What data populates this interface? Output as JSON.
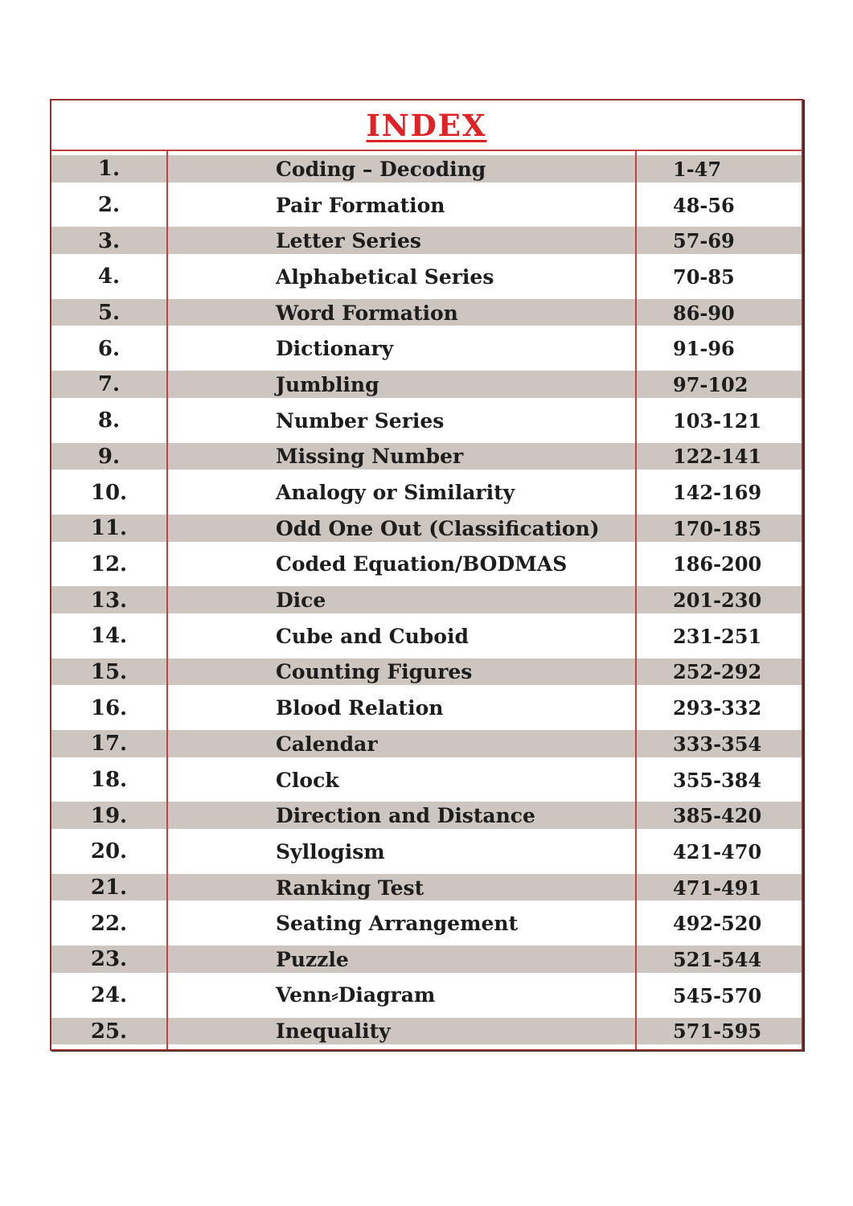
{
  "document": {
    "title": "INDEX",
    "colors": {
      "title_red": "#e02125",
      "border_red": "#c24240",
      "outer_border": "#96302e",
      "row_shade": "#ccc5c0",
      "text": "#1d1d1d",
      "page_bg": "#ffffff"
    },
    "entries": [
      {
        "no": "1.",
        "topic": "Coding – Decoding",
        "pages": "1-47"
      },
      {
        "no": "2.",
        "topic": "Pair Formation",
        "pages": "48-56"
      },
      {
        "no": "3.",
        "topic": "Letter Series",
        "pages": "57-69"
      },
      {
        "no": "4.",
        "topic": "Alphabetical Series",
        "pages": "70-85"
      },
      {
        "no": "5.",
        "topic": "Word Formation",
        "pages": "86-90"
      },
      {
        "no": "6.",
        "topic": "Dictionary",
        "pages": "91-96"
      },
      {
        "no": "7.",
        "topic": "Jumbling",
        "pages": "97-102"
      },
      {
        "no": "8.",
        "topic": "Number Series",
        "pages": "103-121"
      },
      {
        "no": "9.",
        "topic": "Missing Number",
        "pages": "122-141"
      },
      {
        "no": "10.",
        "topic": "Analogy or Similarity",
        "pages": "142-169"
      },
      {
        "no": "11.",
        "topic": "Odd One Out (Classification)",
        "pages": "170-185"
      },
      {
        "no": "12.",
        "topic": "Coded Equation/BODMAS",
        "pages": "186-200"
      },
      {
        "no": "13.",
        "topic": "Dice",
        "pages": "201-230"
      },
      {
        "no": "14.",
        "topic": "Cube and Cuboid",
        "pages": "231-251"
      },
      {
        "no": "15.",
        "topic": "Counting Figures",
        "pages": "252-292"
      },
      {
        "no": "16.",
        "topic": "Blood Relation",
        "pages": "293-332"
      },
      {
        "no": "17.",
        "topic": "Calendar",
        "pages": "333-354"
      },
      {
        "no": "18.",
        "topic": "Clock",
        "pages": "355-384"
      },
      {
        "no": "19.",
        "topic": "Direction and Distance",
        "pages": "385-420"
      },
      {
        "no": "20.",
        "topic": "Syllogism",
        "pages": "421-470"
      },
      {
        "no": "21.",
        "topic": "Ranking Test",
        "pages": "471-491"
      },
      {
        "no": "22.",
        "topic": "Seating Arrangement",
        "pages": "492-520"
      },
      {
        "no": "23.",
        "topic": "Puzzle",
        "pages": "521-544"
      },
      {
        "no": "24.",
        "topic": "Venn⸗Diagram",
        "pages": "545-570"
      },
      {
        "no": "25.",
        "topic": "Inequality",
        "pages": "571-595"
      }
    ]
  }
}
